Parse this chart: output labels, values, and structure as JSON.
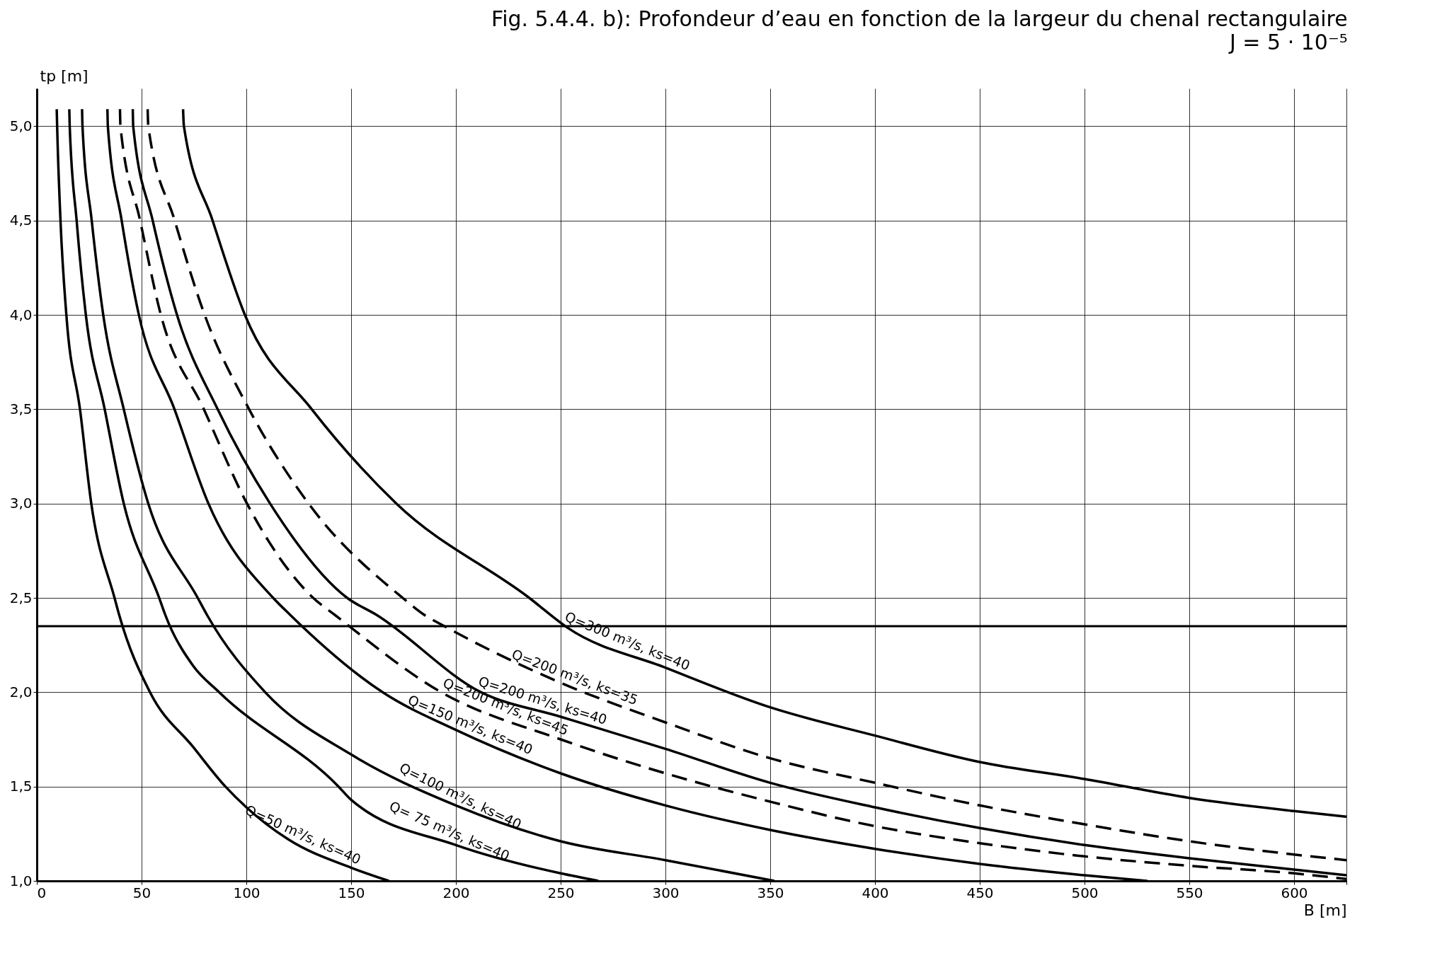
{
  "chart_data": {
    "type": "line",
    "title": "Fig. 5.4.4. b): Profondeur d’eau en fonction de la largeur du chenal rectangulaire",
    "subtitle": "J = 5 · 10⁻⁵",
    "xlabel": "B [m]",
    "ylabel": "tp [m]",
    "xlim": [
      0,
      625
    ],
    "xticks": [
      0,
      50,
      100,
      150,
      200,
      250,
      300,
      350,
      400,
      450,
      500,
      550,
      600,
      {
        "value": 625,
        "label": null
      }
    ],
    "ylim": [
      1,
      5.2
    ],
    "yticks": [
      {
        "value": 1,
        "label": "1,0"
      },
      {
        "value": 1.5,
        "label": "1,5"
      },
      {
        "value": 2,
        "label": "2,0"
      },
      {
        "value": 2.5,
        "label": "2,5"
      },
      {
        "value": 3,
        "label": "3,0"
      },
      {
        "value": 3.5,
        "label": "3,5"
      },
      {
        "value": 4,
        "label": "4,0"
      },
      {
        "value": 4.5,
        "label": "4,5"
      },
      {
        "value": 5,
        "label": "5,0"
      }
    ],
    "grid": true,
    "ref_lines": [
      {
        "axis": "y",
        "value": 2.35,
        "color": "#000000"
      }
    ],
    "series": [
      {
        "name": "Q=50 m³/s, ks=40",
        "color": "#000000",
        "line_style": "solid",
        "x": [
          9.5,
          9.7,
          11.3,
          14.1,
          20.6,
          26.0,
          37.1,
          39.3,
          54,
          74.6,
          90,
          100,
          120,
          150,
          168
        ],
        "values": [
          5.09,
          5.0,
          4.5,
          4.0,
          3.5,
          3.0,
          2.5,
          2.41,
          2.0,
          1.71,
          1.5,
          1.39,
          1.22,
          1.07,
          1.0
        ]
      },
      {
        "name": "Q= 75 m³/s, ks=40",
        "color": "#000000",
        "line_style": "solid",
        "x": [
          15.5,
          15.7,
          19.0,
          23.4,
          32.4,
          41.5,
          58.4,
          61.3,
          74.6,
          87,
          144,
          150,
          200,
          250,
          268
        ],
        "values": [
          5.09,
          5.0,
          4.5,
          4.0,
          3.5,
          3.0,
          2.5,
          2.41,
          2.14,
          2.0,
          1.5,
          1.43,
          1.19,
          1.04,
          1.0
        ]
      },
      {
        "name": "Q=100 m³/s, ks=40",
        "color": "#000000",
        "line_style": "solid",
        "x": [
          21.6,
          21.8,
          26.2,
          31.7,
          41.5,
          53.2,
          76.8,
          81.2,
          109,
          150,
          200,
          250,
          300,
          352
        ],
        "values": [
          5.09,
          5.0,
          4.5,
          4.0,
          3.5,
          3.0,
          2.5,
          2.41,
          2.0,
          1.67,
          1.4,
          1.21,
          1.11,
          1.0
        ]
      },
      {
        "name": "Q=150 m³/s, ks=40",
        "color": "#000000",
        "line_style": "solid",
        "x": [
          33.7,
          33.9,
          40.5,
          48.7,
          65.7,
          81.9,
          112.8,
          120.9,
          165,
          200,
          250,
          300,
          350,
          400,
          450,
          500,
          530
        ],
        "values": [
          5.09,
          5.0,
          4.5,
          4.0,
          3.5,
          3.0,
          2.5,
          2.41,
          2.0,
          1.8,
          1.57,
          1.4,
          1.27,
          1.17,
          1.09,
          1.03,
          1.0
        ]
      },
      {
        "name": "Q=200 m³/s, ks=45",
        "color": "#000000",
        "line_style": "dashed",
        "x": [
          39.7,
          39.9,
          49.3,
          59.2,
          79.7,
          100.3,
          131.9,
          142.2,
          193,
          250,
          300,
          350,
          400,
          450,
          500,
          550,
          600,
          625
        ],
        "values": [
          5.09,
          5.0,
          4.5,
          4.0,
          3.5,
          3.0,
          2.5,
          2.41,
          2.0,
          1.75,
          1.57,
          1.42,
          1.29,
          1.2,
          1.13,
          1.08,
          1.04,
          1.01
        ]
      },
      {
        "name": "Q=200 m³/s, ks=40",
        "color": "#000000",
        "line_style": "solid",
        "x": [
          45.8,
          46.0,
          55.3,
          66.9,
          86.3,
          111.3,
          148.1,
          162.1,
          212,
          250,
          300,
          350,
          400,
          450,
          500,
          550,
          600,
          625
        ],
        "values": [
          5.09,
          5.0,
          4.5,
          4.0,
          3.5,
          3.0,
          2.5,
          2.41,
          2.0,
          1.87,
          1.7,
          1.52,
          1.39,
          1.28,
          1.19,
          1.12,
          1.06,
          1.03
        ]
      },
      {
        "name": "Q=200 m³/s, ks=35",
        "color": "#000000",
        "line_style": "dashed",
        "x": [
          52.9,
          53.2,
          65.8,
          80.1,
          101.3,
          129.7,
          174.6,
          184.9,
          194.5,
          250,
          300,
          350,
          400,
          450,
          500,
          550,
          600,
          625
        ],
        "values": [
          5.09,
          5.0,
          4.5,
          4.0,
          3.5,
          3.0,
          2.5,
          2.41,
          2.35,
          2.05,
          1.84,
          1.65,
          1.52,
          1.4,
          1.3,
          1.21,
          1.14,
          1.11
        ]
      },
      {
        "name": "Q=300 m³/s, ks=40",
        "color": "#000000",
        "line_style": "solid",
        "x": [
          69.8,
          70.2,
          83.9,
          99.3,
          131.2,
          171.6,
          235,
          253.5,
          300,
          350,
          400,
          450,
          500,
          550,
          600,
          625
        ],
        "values": [
          5.09,
          5.0,
          4.5,
          4.0,
          3.5,
          3.0,
          2.5,
          2.34,
          2.13,
          1.92,
          1.77,
          1.63,
          1.54,
          1.44,
          1.37,
          1.34
        ]
      }
    ]
  }
}
